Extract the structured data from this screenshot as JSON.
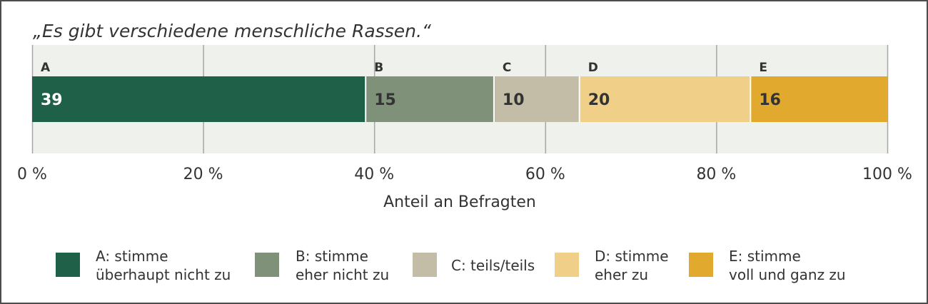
{
  "chart_data": {
    "type": "bar",
    "orientation": "horizontal-stacked",
    "title": "„Es gibt verschiedene menschliche Rassen.“",
    "xlabel": "Anteil an Befragten",
    "ylabel": "",
    "xlim": [
      0,
      100
    ],
    "x_ticks": [
      0,
      20,
      40,
      60,
      80,
      100
    ],
    "x_tick_labels": [
      "0 %",
      "20 %",
      "40 %",
      "60 %",
      "80 %",
      "100 %"
    ],
    "grid": "vertical",
    "series": [
      {
        "key": "A",
        "value": 39,
        "color": "#1f6048",
        "label_color": "#ffffff",
        "legend": "A: stimme überhaupt nicht zu"
      },
      {
        "key": "B",
        "value": 15,
        "color": "#7f9279",
        "label_color": "#333333",
        "legend": "B: stimme eher nicht zu"
      },
      {
        "key": "C",
        "value": 10,
        "color": "#c3bca6",
        "label_color": "#333333",
        "legend": "C: teils/teils"
      },
      {
        "key": "D",
        "value": 20,
        "color": "#f0d088",
        "label_color": "#333333",
        "legend": "D: stimme eher zu"
      },
      {
        "key": "E",
        "value": 16,
        "color": "#e1a92e",
        "label_color": "#333333",
        "legend": "E: stimme voll und ganz zu"
      }
    ],
    "legend_position": "bottom"
  },
  "legend": {
    "a_line1": "A: stimme",
    "a_line2": "überhaupt nicht zu",
    "b_line1": "B: stimme",
    "b_line2": "eher nicht zu",
    "c_line1": "C: teils/teils",
    "d_line1": "D: stimme",
    "d_line2": "eher zu",
    "e_line1": "E: stimme",
    "e_line2": "voll und ganz zu"
  },
  "colors": {
    "plot_background": "#eff2ec",
    "gridline": "#a6a6a6",
    "frame": "#4d4d4d"
  }
}
